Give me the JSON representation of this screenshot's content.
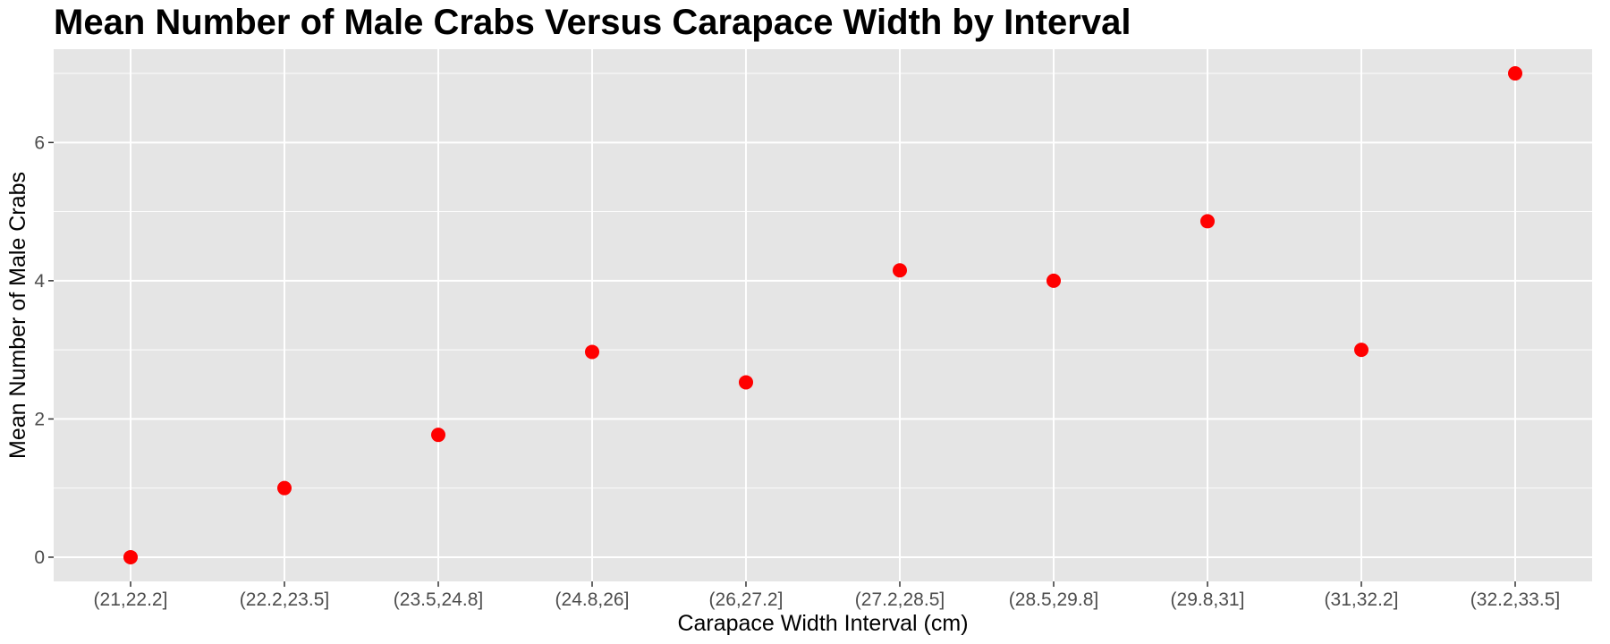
{
  "chart_data": {
    "type": "scatter",
    "title": "Mean Number of Male Crabs Versus Carapace Width by Interval",
    "xlabel": "Carapace Width Interval (cm)",
    "ylabel": "Mean Number of Male Crabs",
    "categories": [
      "(21,22.2]",
      "(22.2,23.5]",
      "(23.5,24.8]",
      "(24.8,26]",
      "(26,27.2]",
      "(27.2,28.5]",
      "(28.5,29.8]",
      "(29.8,31]",
      "(31,32.2]",
      "(32.2,33.5]"
    ],
    "values": [
      0,
      1,
      1.77,
      2.97,
      2.53,
      4.15,
      4.0,
      4.86,
      3.0,
      7.0
    ],
    "ylim": [
      -0.35,
      7.35
    ],
    "yticks": [
      0,
      2,
      4,
      6
    ],
    "grid": true,
    "point_color": "#ff0000",
    "panel_color": "#e5e5e5",
    "grid_color": "#ffffff"
  }
}
